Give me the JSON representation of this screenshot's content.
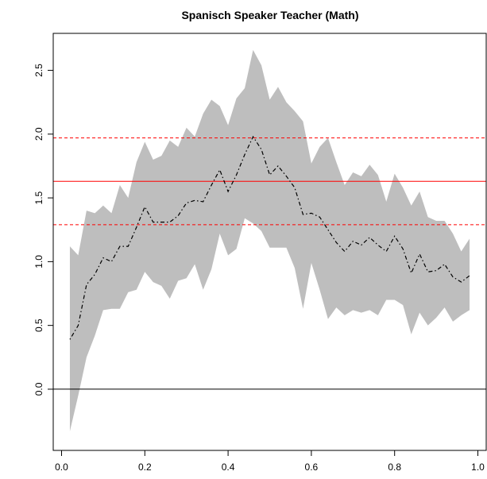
{
  "chart_data": {
    "type": "band-line",
    "title": "Spanisch Speaker Teacher (Math)",
    "x": [
      0.02,
      0.04,
      0.06,
      0.08,
      0.1,
      0.12,
      0.14,
      0.16,
      0.18,
      0.2,
      0.22,
      0.24,
      0.26,
      0.28,
      0.3,
      0.32,
      0.34,
      0.36,
      0.38,
      0.4,
      0.42,
      0.44,
      0.46,
      0.48,
      0.5,
      0.52,
      0.54,
      0.56,
      0.58,
      0.6,
      0.62,
      0.64,
      0.66,
      0.68,
      0.7,
      0.72,
      0.74,
      0.76,
      0.78,
      0.8,
      0.82,
      0.84,
      0.86,
      0.88,
      0.9,
      0.92,
      0.94,
      0.96,
      0.98
    ],
    "series": [
      {
        "color": "#000000",
        "values": [
          0.39,
          0.5,
          0.82,
          0.9,
          1.03,
          1.0,
          1.12,
          1.12,
          1.27,
          1.43,
          1.31,
          1.31,
          1.31,
          1.36,
          1.46,
          1.48,
          1.47,
          1.6,
          1.72,
          1.55,
          1.68,
          1.84,
          1.98,
          1.88,
          1.68,
          1.75,
          1.67,
          1.58,
          1.37,
          1.38,
          1.35,
          1.25,
          1.15,
          1.08,
          1.16,
          1.13,
          1.19,
          1.13,
          1.08,
          1.2,
          1.1,
          0.91,
          1.06,
          0.92,
          0.93,
          0.98,
          0.88,
          0.84,
          0.89
        ]
      }
    ],
    "band": {
      "color": "#bebebe",
      "upper": [
        1.12,
        1.05,
        1.4,
        1.38,
        1.44,
        1.38,
        1.6,
        1.5,
        1.78,
        1.94,
        1.8,
        1.83,
        1.95,
        1.9,
        2.05,
        1.98,
        2.16,
        2.27,
        2.22,
        2.07,
        2.28,
        2.36,
        2.66,
        2.54,
        2.27,
        2.37,
        2.25,
        2.18,
        2.1,
        1.77,
        1.9,
        1.97,
        1.78,
        1.6,
        1.7,
        1.67,
        1.76,
        1.68,
        1.47,
        1.69,
        1.58,
        1.44,
        1.55,
        1.35,
        1.32,
        1.32,
        1.22,
        1.08,
        1.18
      ],
      "lower": [
        -0.33,
        -0.05,
        0.25,
        0.42,
        0.62,
        0.63,
        0.63,
        0.76,
        0.78,
        0.92,
        0.84,
        0.81,
        0.71,
        0.85,
        0.87,
        0.98,
        0.78,
        0.94,
        1.22,
        1.05,
        1.1,
        1.34,
        1.3,
        1.24,
        1.11,
        1.11,
        1.11,
        0.95,
        0.63,
        0.99,
        0.78,
        0.55,
        0.64,
        0.58,
        0.62,
        0.6,
        0.62,
        0.58,
        0.7,
        0.7,
        0.66,
        0.43,
        0.6,
        0.5,
        0.56,
        0.64,
        0.53,
        0.58,
        0.62
      ]
    },
    "hlines": [
      {
        "value": 0,
        "color": "#000000",
        "dashed": false
      },
      {
        "value": 1.63,
        "color": "#ff0000",
        "dashed": false
      },
      {
        "value": 1.97,
        "color": "#ff0000",
        "dashed": true
      },
      {
        "value": 1.29,
        "color": "#ff0000",
        "dashed": true
      }
    ],
    "xlim": [
      -0.02,
      1.02
    ],
    "ylim": [
      -0.48,
      2.79
    ],
    "xticks": [
      {
        "value": 0,
        "label": "0.0"
      },
      0.2,
      0.4,
      0.6,
      0.8,
      {
        "value": 1,
        "label": "1.0"
      }
    ],
    "yticks": [
      {
        "value": 0,
        "label": "0.0"
      },
      0.5,
      {
        "value": 1,
        "label": "1.0"
      },
      1.5,
      {
        "value": 2,
        "label": "2.0"
      },
      2.5
    ]
  }
}
